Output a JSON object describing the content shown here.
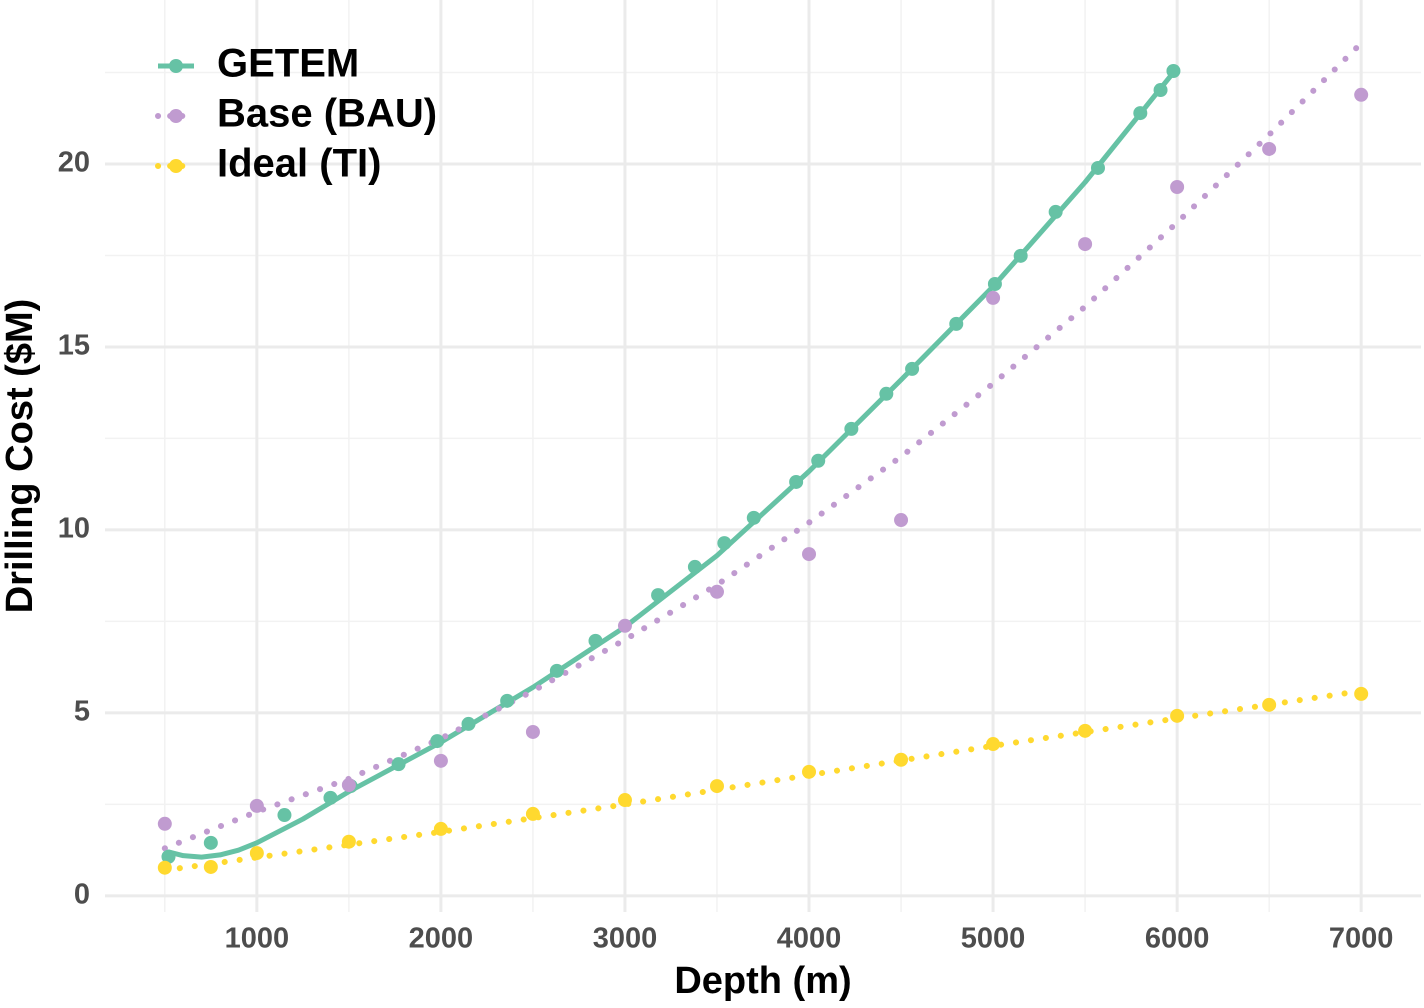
{
  "chart_data": {
    "type": "scatter",
    "x_label": "Depth (m)",
    "y_label": "Drilling Cost ($M)",
    "xlim": [
      175,
      7325
    ],
    "ylim": [
      -0.44,
      24.48
    ],
    "xticks": [
      1000,
      2000,
      3000,
      4000,
      5000,
      6000,
      7000
    ],
    "yticks": [
      0,
      5,
      10,
      15,
      20
    ],
    "x_minor_grid": [
      500,
      1500,
      2500,
      3500,
      4500,
      5500,
      6500
    ],
    "y_minor_grid": [
      2.5,
      7.5,
      12.5,
      17.5,
      22.5
    ],
    "grid": true,
    "legend": "top-left",
    "series": [
      {
        "name": "GETEM",
        "color": "#66c2a5",
        "line_style": "solid",
        "x": [
          520,
          750,
          1150,
          1400,
          1510,
          1770,
          1980,
          2150,
          2360,
          2630,
          2840,
          3180,
          3380,
          3540,
          3700,
          3930,
          4050,
          4230,
          4420,
          4560,
          4800,
          5010,
          5150,
          5340,
          5570,
          5800,
          5910,
          5980
        ],
        "values": [
          1.07,
          1.45,
          2.21,
          2.68,
          3.0,
          3.6,
          4.23,
          4.7,
          5.33,
          6.15,
          6.97,
          8.22,
          8.99,
          9.64,
          10.33,
          11.31,
          11.89,
          12.76,
          13.72,
          14.4,
          15.63,
          16.72,
          17.49,
          18.69,
          19.89,
          21.39,
          22.02,
          22.54
        ],
        "fit_x": [
          520,
          600,
          700,
          800,
          900,
          1000,
          1250,
          1500,
          2000,
          2500,
          3000,
          3500,
          4000,
          4500,
          5000,
          5500,
          5980
        ],
        "fit_values": [
          1.2,
          1.1,
          1.06,
          1.12,
          1.25,
          1.45,
          2.1,
          2.85,
          4.2,
          5.7,
          7.35,
          9.3,
          11.6,
          14.1,
          16.65,
          19.5,
          22.5
        ]
      },
      {
        "name": "Base (BAU)",
        "color": "#c09bd0",
        "line_style": "dotted",
        "x": [
          500,
          1000,
          1500,
          2000,
          2500,
          3000,
          3500,
          4000,
          4500,
          5000,
          5500,
          6000,
          6500,
          7000
        ],
        "values": [
          1.97,
          2.46,
          3.03,
          3.69,
          4.48,
          7.38,
          8.31,
          9.34,
          10.27,
          16.34,
          17.81,
          19.37,
          20.41,
          21.89
        ],
        "fit_x": [
          500,
          1000,
          1500,
          2000,
          2500,
          3000,
          3500,
          4000,
          4500,
          5000,
          5500,
          6000,
          6500,
          7000
        ],
        "fit_values": [
          1.3,
          2.3,
          3.2,
          4.3,
          5.6,
          7.0,
          8.5,
          10.2,
          12.0,
          14.0,
          16.1,
          18.4,
          20.8,
          23.3
        ]
      },
      {
        "name": "Ideal (TI)",
        "color": "#ffd92f",
        "line_style": "dotted",
        "x": [
          500,
          750,
          1000,
          1500,
          2000,
          2500,
          3000,
          3500,
          4000,
          4500,
          5000,
          5500,
          6000,
          6500,
          7000
        ],
        "values": [
          0.77,
          0.79,
          1.17,
          1.48,
          1.83,
          2.24,
          2.62,
          3.0,
          3.39,
          3.72,
          4.15,
          4.51,
          4.92,
          5.22,
          5.52
        ],
        "fit_x": [
          500,
          1000,
          2000,
          3000,
          4000,
          5000,
          6000,
          7000
        ],
        "fit_values": [
          0.7,
          1.05,
          1.75,
          2.5,
          3.3,
          4.1,
          4.85,
          5.6
        ]
      }
    ]
  }
}
